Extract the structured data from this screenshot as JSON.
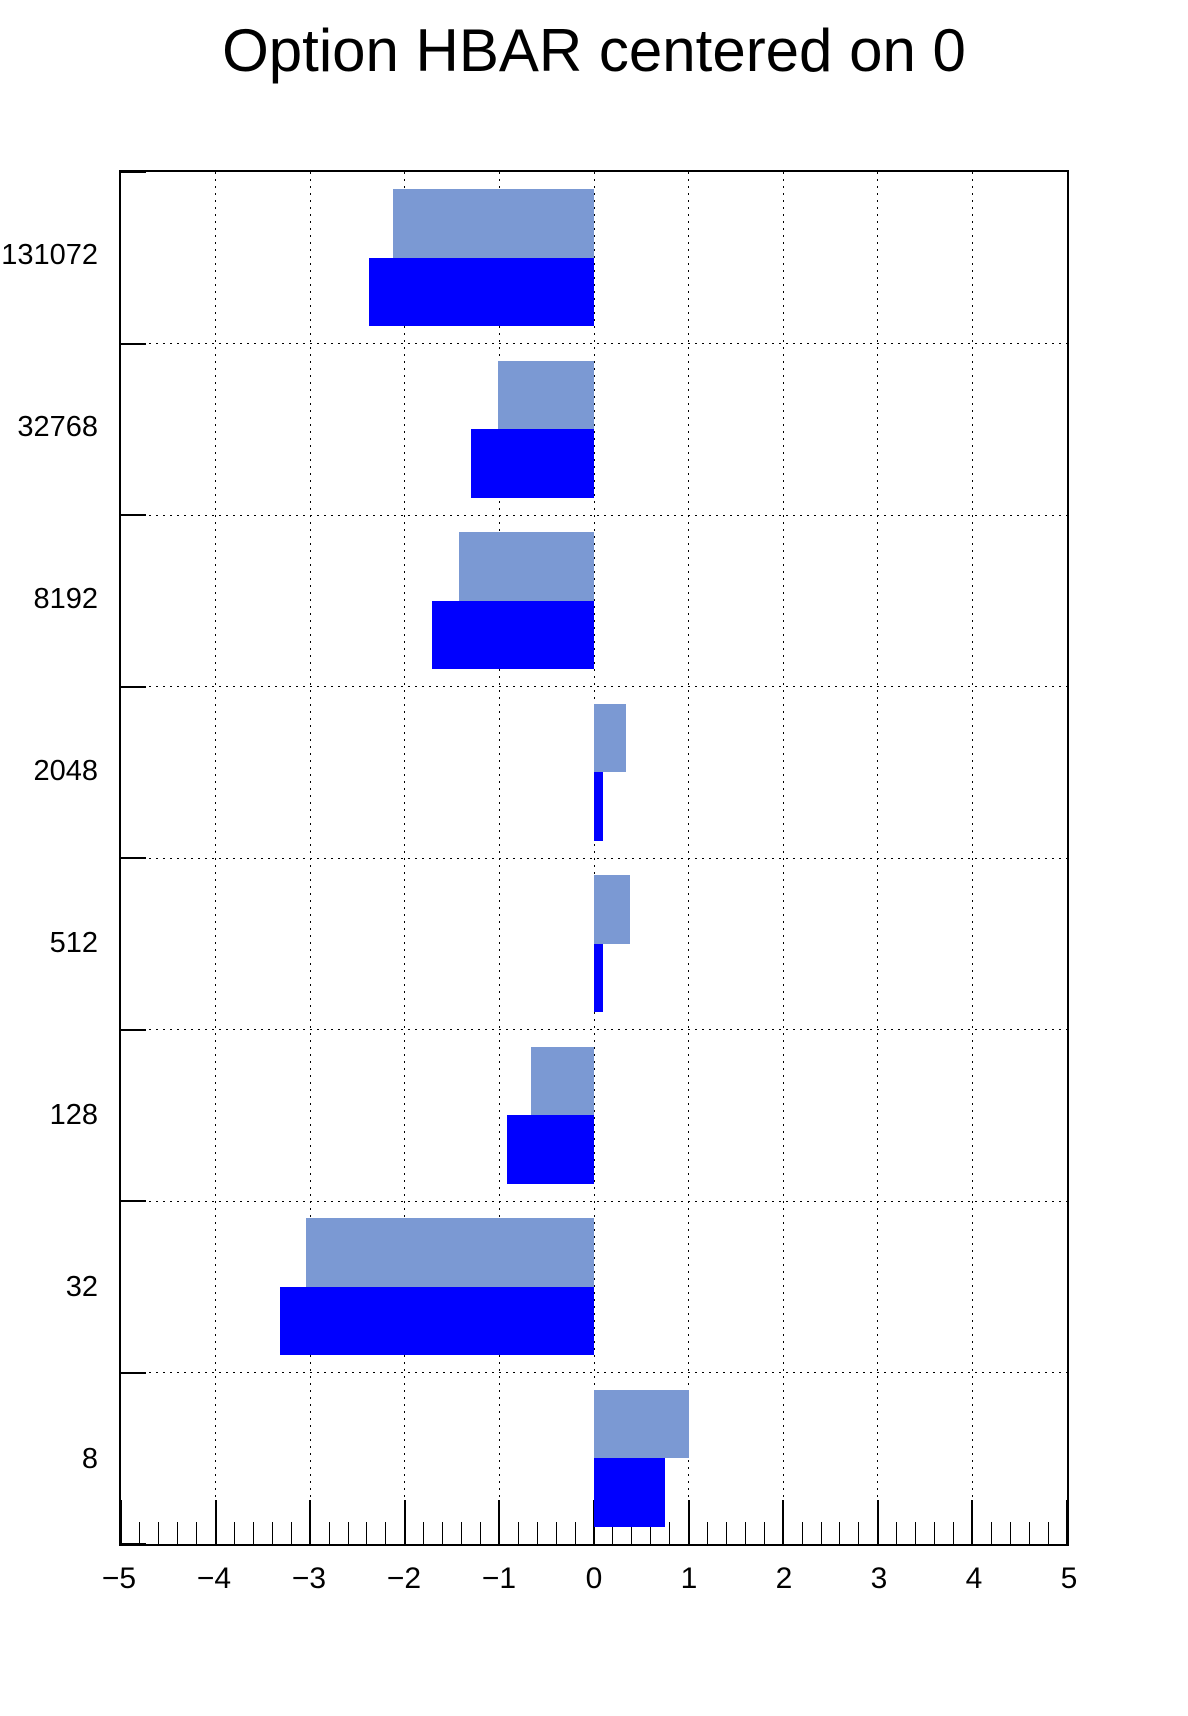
{
  "title": "Option HBAR centered on 0",
  "chart_data": {
    "type": "bar",
    "orientation": "horizontal",
    "title": "Option HBAR centered on 0",
    "xlabel": "",
    "ylabel": "",
    "xlim": [
      -5,
      5
    ],
    "baseline": 0,
    "grid": true,
    "legend": false,
    "categories": [
      "131072",
      "32768",
      "8192",
      "2048",
      "512",
      "128",
      "32",
      "8"
    ],
    "series": [
      {
        "name": "light-blue-series",
        "color": "#7b99d3",
        "values": [
          -2.12,
          -1.02,
          -1.43,
          0.34,
          0.38,
          -0.67,
          -3.04,
          1.0
        ]
      },
      {
        "name": "blue-series",
        "color": "#0000ff",
        "values": [
          -2.38,
          -1.3,
          -1.71,
          0.1,
          0.1,
          -0.92,
          -3.32,
          0.75
        ]
      }
    ],
    "x_major_ticks": [
      -5,
      -4,
      -3,
      -2,
      -1,
      0,
      1,
      2,
      3,
      4,
      5
    ],
    "x_tick_labels": [
      "−5",
      "−4",
      "−3",
      "−2",
      "−1",
      "0",
      "1",
      "2",
      "3",
      "4",
      "5"
    ],
    "x_minor_step": 0.2
  },
  "colors": {
    "background": "#ffffff",
    "frame": "#000000",
    "grid": "#000000",
    "bar_light": "#7b99d3",
    "bar_blue": "#0000ff"
  }
}
